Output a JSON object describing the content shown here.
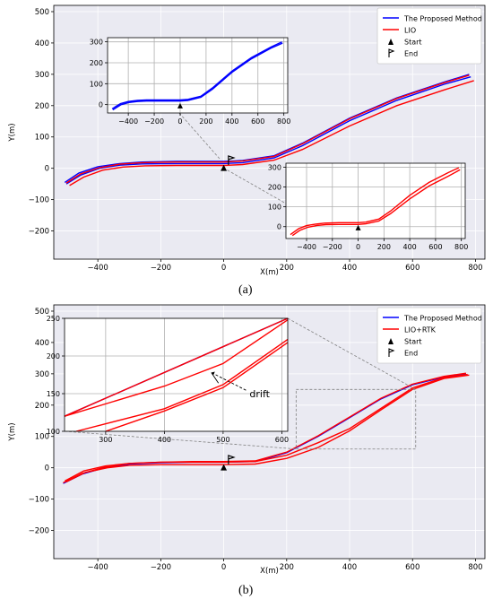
{
  "panels": [
    {
      "label": "(a)",
      "chart_data": {
        "type": "line",
        "xlabel": "X(m)",
        "ylabel": "Y(m)",
        "xlim": [
          -540,
          830
        ],
        "ylim": [
          -290,
          520
        ],
        "xticks": [
          -400,
          -200,
          0,
          200,
          400,
          600,
          800
        ],
        "yticks": [
          -200,
          -100,
          0,
          100,
          200,
          300,
          400,
          500
        ],
        "grid": true,
        "legend": {
          "placement": "top-right",
          "entries": [
            {
              "label": "The Proposed Method",
              "color": "#0000ff",
              "marker": "line"
            },
            {
              "label": "LIO",
              "color": "#ff0000",
              "marker": "line"
            },
            {
              "label": "Start",
              "color": "#000000",
              "marker": "triangle"
            },
            {
              "label": "End",
              "color": "#000000",
              "marker": "flag"
            }
          ]
        },
        "series": [
          {
            "color": "#0000ff",
            "x": [
              -505,
              -460,
              -400,
              -330,
              -260,
              -150,
              -50,
              0,
              60,
              160,
              250,
              400,
              550,
              700,
              780
            ],
            "y": [
              -45,
              -15,
              5,
              15,
              20,
              22,
              22,
              22,
              25,
              40,
              80,
              160,
              225,
              275,
              300
            ]
          },
          {
            "color": "#0000ff",
            "x": [
              -500,
              -455,
              -395,
              -330,
              -260,
              -150,
              -50,
              0,
              60,
              160,
              250,
              400,
              550,
              700,
              785
            ],
            "y": [
              -50,
              -22,
              0,
              10,
              14,
              15,
              15,
              15,
              18,
              33,
              72,
              152,
              217,
              268,
              292
            ]
          },
          {
            "color": "#ff0000",
            "x": [
              -500,
              -455,
              -395,
              -330,
              -260,
              -150,
              -50,
              0,
              60,
              160,
              250,
              400,
              550,
              700,
              780
            ],
            "y": [
              -47,
              -18,
              2,
              13,
              18,
              20,
              20,
              20,
              23,
              38,
              78,
              158,
              223,
              273,
              297
            ]
          },
          {
            "color": "#ff0000",
            "x": [
              -490,
              -445,
              -385,
              -320,
              -250,
              -150,
              -50,
              0,
              60,
              160,
              250,
              400,
              550,
              700,
              795
            ],
            "y": [
              -55,
              -28,
              -6,
              4,
              8,
              9,
              9,
              9,
              12,
              26,
              60,
              135,
              200,
              250,
              280
            ]
          }
        ],
        "markers": {
          "start": [
            0,
            0
          ],
          "end": [
            15,
            25
          ]
        },
        "insets": [
          {
            "xlim": [
              -560,
              830
            ],
            "ylim": [
              -40,
              320
            ],
            "xticks": [
              -400,
              -200,
              0,
              200,
              400,
              600,
              800
            ],
            "yticks": [
              0,
              100,
              200,
              300
            ],
            "series": [
              {
                "color": "#0000ff",
                "x": [
                  -525,
                  -460,
                  -400,
                  -330,
                  -260,
                  -150,
                  -50,
                  0,
                  60,
                  160,
                  250,
                  400,
                  550,
                  700,
                  785
                ],
                "y": [
                  -20,
                  5,
                  15,
                  20,
                  22,
                  22,
                  22,
                  22,
                  25,
                  40,
                  80,
                  160,
                  225,
                  275,
                  300
                ]
              },
              {
                "color": "#0000ff",
                "x": [
                  -520,
                  -455,
                  -395,
                  -330,
                  -260,
                  -150,
                  -50,
                  0,
                  60,
                  160,
                  250,
                  400,
                  550,
                  700,
                  790
                ],
                "y": [
                  -25,
                  0,
                  10,
                  15,
                  17,
                  17,
                  17,
                  17,
                  20,
                  35,
                  74,
                  154,
                  219,
                  270,
                  294
                ]
              }
            ]
          },
          {
            "xlim": [
              -560,
              830
            ],
            "ylim": [
              -60,
              320
            ],
            "xticks": [
              -400,
              -200,
              0,
              200,
              400,
              600,
              800
            ],
            "yticks": [
              0,
              100,
              200,
              300
            ],
            "series": [
              {
                "color": "#ff0000",
                "x": [
                  -525,
                  -460,
                  -400,
                  -330,
                  -260,
                  -150,
                  -50,
                  0,
                  60,
                  160,
                  250,
                  400,
                  550,
                  700,
                  780
                ],
                "y": [
                  -40,
                  -10,
                  5,
                  13,
                  18,
                  20,
                  20,
                  20,
                  23,
                  38,
                  78,
                  158,
                  223,
                  273,
                  297
                ]
              },
              {
                "color": "#ff0000",
                "x": [
                  -510,
                  -450,
                  -390,
                  -320,
                  -250,
                  -150,
                  -50,
                  0,
                  60,
                  160,
                  250,
                  400,
                  550,
                  700,
                  790
                ],
                "y": [
                  -45,
                  -18,
                  -3,
                  6,
                  10,
                  11,
                  11,
                  11,
                  14,
                  28,
                  65,
                  140,
                  205,
                  255,
                  287
                ]
              }
            ]
          }
        ]
      }
    },
    {
      "label": "(b)",
      "chart_data": {
        "type": "line",
        "xlabel": "X(m)",
        "ylabel": "Y(m)",
        "xlim": [
          -540,
          830
        ],
        "ylim": [
          -290,
          520
        ],
        "xticks": [
          -400,
          -200,
          0,
          200,
          400,
          600,
          800
        ],
        "yticks": [
          -200,
          -100,
          0,
          100,
          200,
          300,
          400,
          500
        ],
        "grid": true,
        "legend": {
          "placement": "top-right",
          "entries": [
            {
              "label": "The Proposed Method",
              "color": "#0000ff",
              "marker": "line"
            },
            {
              "label": "LIO+RTK",
              "color": "#ff0000",
              "marker": "line"
            },
            {
              "label": "Start",
              "color": "#000000",
              "marker": "triangle"
            },
            {
              "label": "End",
              "color": "#000000",
              "marker": "flag"
            }
          ]
        },
        "series": [
          {
            "color": "#0000ff",
            "x": [
              -510,
              -450,
              -380,
              -300,
              -200,
              -100,
              0,
              100,
              200,
              300,
              400,
              500,
              600,
              700,
              770
            ],
            "y": [
              -50,
              -20,
              0,
              12,
              16,
              18,
              18,
              20,
              48,
              100,
              160,
              220,
              265,
              290,
              300
            ]
          },
          {
            "color": "#ff0000",
            "x": [
              -510,
              -450,
              -380,
              -300,
              -200,
              -100,
              0,
              100,
              200,
              300,
              400,
              500,
              600,
              700,
              770
            ],
            "y": [
              -48,
              -18,
              2,
              14,
              18,
              20,
              20,
              22,
              50,
              102,
              162,
              222,
              267,
              292,
              302
            ]
          },
          {
            "color": "#ff0000",
            "x": [
              -505,
              -445,
              -375,
              -300,
              -200,
              -100,
              0,
              100,
              200,
              300,
              400,
              500,
              600,
              700,
              775
            ],
            "y": [
              -42,
              -10,
              6,
              14,
              18,
              18,
              18,
              20,
              40,
              80,
              125,
              190,
              255,
              288,
              298
            ]
          },
          {
            "color": "#ff0000",
            "x": [
              -500,
              -440,
              -370,
              -300,
              -200,
              -100,
              0,
              100,
              200,
              300,
              400,
              500,
              600,
              700,
              780
            ],
            "y": [
              -45,
              -15,
              0,
              8,
              10,
              10,
              10,
              12,
              30,
              65,
              118,
              185,
              250,
              285,
              296
            ]
          }
        ],
        "markers": {
          "start": [
            0,
            0
          ],
          "end": [
            15,
            25
          ]
        },
        "zoom_region": {
          "xlim": [
            230,
            610
          ],
          "ylim": [
            60,
            250
          ]
        },
        "insets": [
          {
            "xlim": [
              230,
              610
            ],
            "ylim": [
              100,
              250
            ],
            "xticks": [
              300,
              400,
              500,
              600
            ],
            "yticks": [
              100,
              150,
              200,
              250
            ],
            "series": [
              {
                "color": "#0000ff",
                "x": [
                  230,
                  610
                ],
                "y": [
                  120,
                  250
                ]
              },
              {
                "color": "#ff0000",
                "x": [
                  230,
                  610
                ],
                "y": [
                  120,
                  250
                ]
              },
              {
                "color": "#ff0000",
                "x": [
                  230,
                  400,
                  500,
                  610
                ],
                "y": [
                  120,
                  160,
                  190,
                  248
                ]
              },
              {
                "color": "#ff0000",
                "x": [
                  250,
                  400,
                  500,
                  610
                ],
                "y": [
                  100,
                  130,
                  162,
                  222
                ]
              },
              {
                "color": "#ff0000",
                "x": [
                  300,
                  400,
                  500,
                  610
                ],
                "y": [
                  100,
                  127,
                  158,
                  218
                ]
              }
            ],
            "annotation": {
              "text": "drift",
              "x": 490,
              "y": 160,
              "xytext": [
                545,
                145
              ]
            }
          }
        ]
      }
    }
  ]
}
